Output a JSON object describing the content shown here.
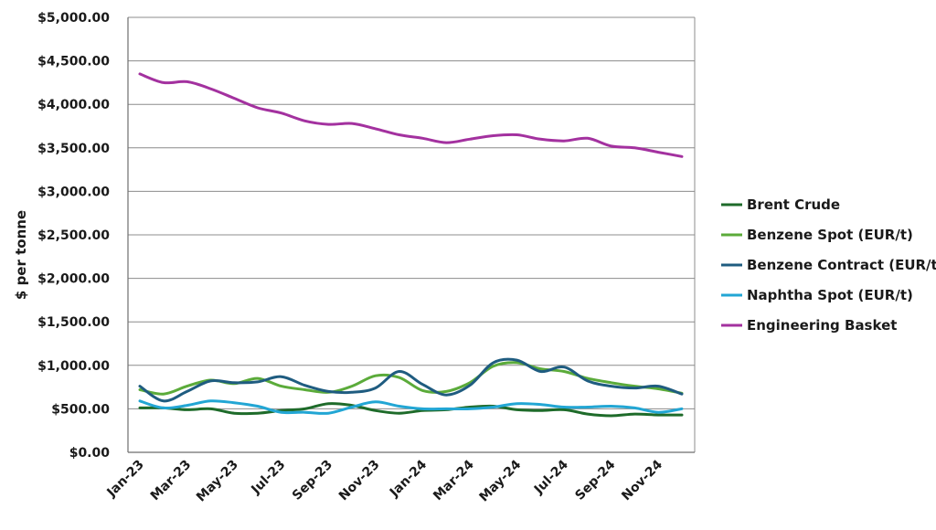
{
  "chart_data": {
    "type": "line",
    "ylabel": "$ per tonne",
    "ylim": [
      0,
      5000
    ],
    "y_ticks": [
      0,
      500,
      1000,
      1500,
      2000,
      2500,
      3000,
      3500,
      4000,
      4500,
      5000
    ],
    "y_tick_labels": [
      "$0.00",
      "$500.00",
      "$1,000.00",
      "$1,500.00",
      "$2,000.00",
      "$2,500.00",
      "$3,000.00",
      "$3,500.00",
      "$4,000.00",
      "$4,500.00",
      "$5,000.00"
    ],
    "x": [
      "Jan-23",
      "Feb-23",
      "Mar-23",
      "Apr-23",
      "May-23",
      "Jun-23",
      "Jul-23",
      "Aug-23",
      "Sep-23",
      "Oct-23",
      "Nov-23",
      "Dec-23",
      "Jan-24",
      "Feb-24",
      "Mar-24",
      "Apr-24",
      "May-24",
      "Jun-24",
      "Jul-24",
      "Aug-24",
      "Sep-24",
      "Oct-24",
      "Nov-24",
      "Dec-24"
    ],
    "x_tick_labels": [
      "Jan-23",
      "Mar-23",
      "May-23",
      "Jul-23",
      "Sep-23",
      "Nov-23",
      "Jan-24",
      "Mar-24",
      "May-24",
      "Jul-24",
      "Sep-24",
      "Nov-24"
    ],
    "grid": "horizontal",
    "legend_position": "right",
    "series": [
      {
        "name": "Brent Crude",
        "color": "#1e6b2a",
        "values": [
          510,
          510,
          490,
          500,
          450,
          450,
          480,
          500,
          560,
          540,
          480,
          450,
          480,
          490,
          520,
          530,
          490,
          480,
          490,
          440,
          420,
          440,
          430,
          430
        ]
      },
      {
        "name": "Benzene Spot (EUR/t)",
        "color": "#5bab3a",
        "values": [
          720,
          670,
          760,
          830,
          790,
          850,
          760,
          720,
          690,
          760,
          880,
          860,
          710,
          700,
          800,
          990,
          1030,
          960,
          930,
          850,
          800,
          760,
          730,
          680
        ]
      },
      {
        "name": "Benzene Contract (EUR/t)",
        "color": "#1f5c80",
        "values": [
          760,
          590,
          700,
          820,
          800,
          810,
          870,
          770,
          700,
          690,
          740,
          930,
          780,
          660,
          770,
          1030,
          1060,
          930,
          980,
          820,
          760,
          740,
          760,
          670
        ]
      },
      {
        "name": "Naphtha Spot (EUR/t)",
        "color": "#22a6d4",
        "values": [
          590,
          510,
          540,
          590,
          570,
          530,
          460,
          460,
          450,
          520,
          580,
          530,
          500,
          500,
          500,
          520,
          560,
          550,
          520,
          520,
          530,
          510,
          460,
          500
        ]
      },
      {
        "name": "Engineering Basket",
        "color": "#a3319f",
        "values": [
          4350,
          4250,
          4260,
          4180,
          4070,
          3960,
          3900,
          3810,
          3770,
          3780,
          3720,
          3650,
          3610,
          3560,
          3600,
          3640,
          3650,
          3600,
          3580,
          3610,
          3520,
          3500,
          3450,
          3400
        ]
      }
    ]
  }
}
